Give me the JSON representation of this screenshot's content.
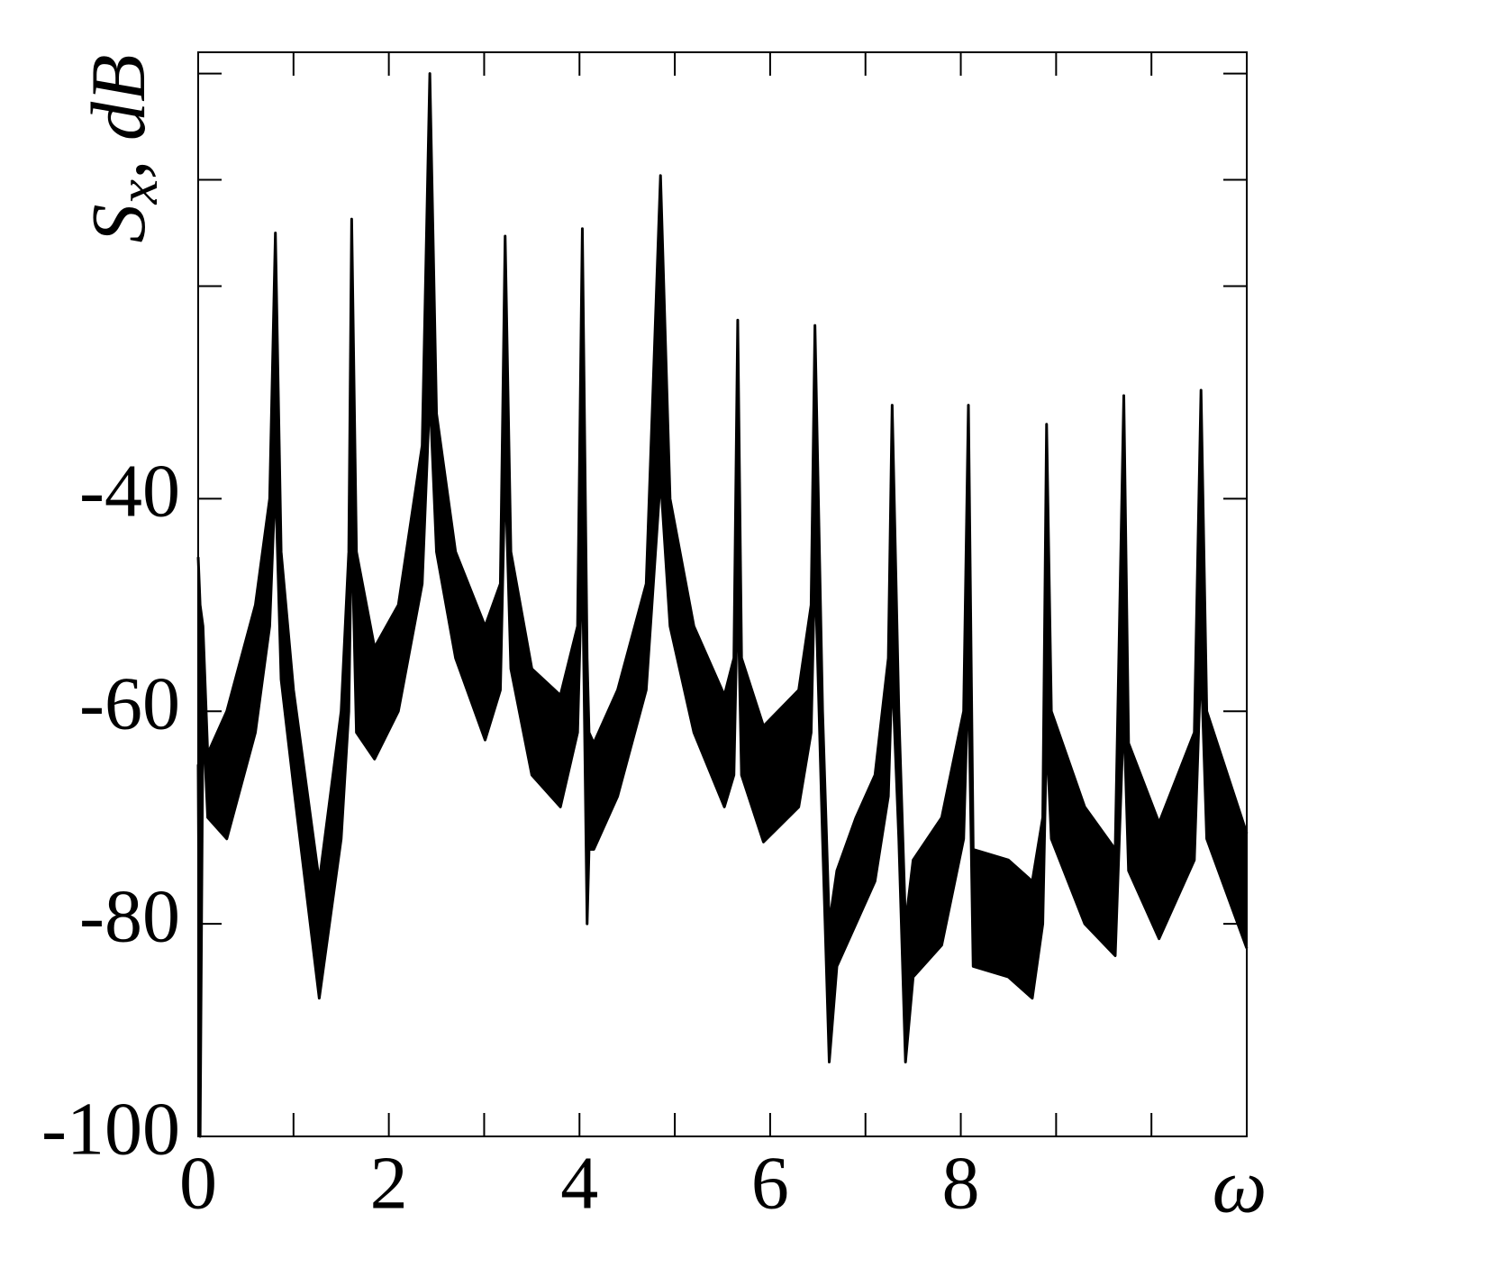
{
  "chart_data": {
    "type": "band",
    "ylabel": {
      "main": "S",
      "sub": "x",
      "rest": ", dB"
    },
    "xlabel": "ω",
    "xlim": [
      0,
      11
    ],
    "xticks": [
      0,
      2,
      4,
      6,
      8
    ],
    "xticks_minor": [
      1,
      3,
      5,
      7,
      9,
      10
    ],
    "ylim": [
      -100,
      2
    ],
    "yticks": [
      -100,
      -80,
      -60,
      -40
    ],
    "yticks_minor": [
      -20,
      -10,
      0
    ],
    "x": [
      0,
      0.02,
      0.05,
      0.1,
      0.3,
      0.6,
      0.75,
      0.81,
      0.87,
      1.0,
      1.27,
      1.5,
      1.58,
      1.61,
      1.66,
      1.85,
      2.1,
      2.35,
      2.43,
      2.5,
      2.7,
      3.01,
      3.17,
      3.22,
      3.28,
      3.5,
      3.8,
      3.98,
      4.03,
      4.08,
      4.1,
      4.15,
      4.4,
      4.7,
      4.85,
      4.95,
      5.2,
      5.52,
      5.62,
      5.66,
      5.7,
      5.93,
      6.3,
      6.43,
      6.47,
      6.55,
      6.62,
      6.7,
      6.9,
      7.1,
      7.24,
      7.28,
      7.35,
      7.42,
      7.5,
      7.8,
      8.03,
      8.08,
      8.13,
      8.5,
      8.75,
      8.86,
      8.9,
      8.95,
      9.3,
      9.62,
      9.71,
      9.76,
      10.08,
      10.45,
      10.52,
      10.58,
      11
    ],
    "series": [
      {
        "color": "#000000",
        "values": [
          -45.5,
          -50,
          -52,
          -64,
          -60,
          -50,
          -40,
          -15,
          -45,
          -58,
          -76,
          -60,
          -45,
          -13.7,
          -45,
          -54,
          -50,
          -35,
          0,
          -32,
          -45,
          -52,
          -48,
          -15.3,
          -45,
          -56,
          -58.5,
          -52,
          -14.6,
          -55,
          -62,
          -63,
          -58,
          -48,
          -9.6,
          -40,
          -52,
          -58.5,
          -55,
          -23.2,
          -55,
          -61.4,
          -58,
          -50,
          -23.7,
          -60,
          -80,
          -75,
          -70,
          -66,
          -55,
          -31.2,
          -60,
          -80,
          -74,
          -70,
          -60,
          -31.2,
          -73,
          -74,
          -76,
          -70,
          -33,
          -60,
          -69,
          -73,
          -30.3,
          -63,
          -70.5,
          -62,
          -29.8,
          -60,
          -71.5
        ]
      },
      {
        "color": "#000000",
        "values": [
          -65,
          -100,
          -60,
          -70,
          -72,
          -62,
          -52,
          -38,
          -57,
          -67,
          -87,
          -72,
          -60,
          -42,
          -62,
          -64.5,
          -60,
          -48,
          -30,
          -45,
          -55,
          -62.7,
          -58,
          -37,
          -56,
          -66,
          -69,
          -62,
          -45,
          -80,
          -73,
          -73,
          -68,
          -58,
          -38,
          -52,
          -62,
          -69,
          -66,
          -48,
          -66,
          -72.3,
          -69,
          -62,
          -46,
          -72,
          -93,
          -84,
          -80,
          -76,
          -68,
          -56,
          -72,
          -93,
          -85,
          -82,
          -72,
          -56,
          -84,
          -85,
          -87,
          -80,
          -62,
          -72,
          -80,
          -83,
          -60,
          -75,
          -81.4,
          -74,
          -55,
          -72,
          -82.3
        ]
      }
    ]
  }
}
